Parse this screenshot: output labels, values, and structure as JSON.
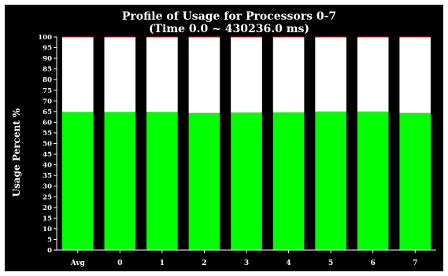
{
  "chart_data": {
    "type": "bar",
    "title": "Profile of Usage for Processors 0-7",
    "subtitle": "(Time 0.0 ~ 430236.0 ms)",
    "ylabel": "Usage Percent %",
    "xlabel": "",
    "ylim": [
      0,
      100
    ],
    "yticks": [
      0,
      5,
      10,
      15,
      20,
      25,
      30,
      35,
      40,
      45,
      50,
      55,
      60,
      65,
      70,
      75,
      80,
      85,
      90,
      95,
      100
    ],
    "categories": [
      "Avg",
      "0",
      "1",
      "2",
      "3",
      "4",
      "5",
      "6",
      "7"
    ],
    "series": [
      {
        "values": [
          64.8,
          64.8,
          64.8,
          64.3,
          64.5,
          64.6,
          65.0,
          65.0,
          64.3
        ],
        "color": "#00ff00"
      },
      {
        "values": [
          35.2,
          35.2,
          35.2,
          35.7,
          35.5,
          35.4,
          35.0,
          35.0,
          35.7
        ],
        "color": "#ffffff"
      }
    ],
    "stacked": true,
    "grid": false,
    "background": "#000000",
    "axis_color": "#ffffff",
    "top_line_color": "#ff0000"
  }
}
